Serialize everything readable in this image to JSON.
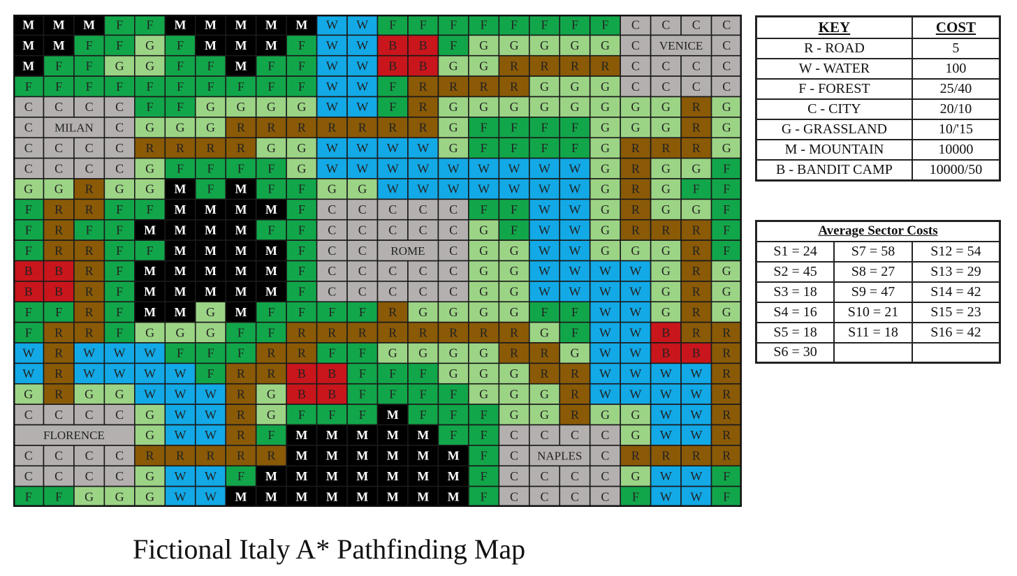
{
  "title": "Fictional Italy A* Pathfinding Map",
  "colors": {
    "M": "#000000",
    "F": "#12a64a",
    "G": "#9cd486",
    "W": "#12a9e6",
    "B": "#c8161c",
    "R": "#8a5a07",
    "C": "#b5b0b0",
    "text_light": "#ffffff",
    "text_dark": "#222222"
  },
  "map": {
    "rows": [
      "MMMFFMMMMMWWFFFFFFFFCCCC",
      "MMFFGFMMMFWWBBFGGGGGCCCC",
      "MFFGGFFMFFWWBBGGRRRRCCCC",
      "FFFFFFFFFFWWFRRRRGGGCCCC",
      "CCCCFFGGGGWWFRGGGGGGGGRG",
      "CCCCGGGRRRRRRRGFFFFGGGRG",
      "CCCCRRRRGGWWWWGFFFFGRRRG",
      "CCCCGFFFFGWWWWWWWWWGRGGF",
      "GGRGGMFMFFGGWWWWWWWGRGFF",
      "FRRFFMMMMFCCCCCFFWWGRGGF",
      "FRFFMMMMFFCCCCCGFWWGRRRF",
      "FRRFFMMMMFCCCCCGGWWGGGRF",
      "BBRFMMMMMFCCCCCGGWWWWGRG",
      "BBRFMMMMMFCCCCCGGWWWWGRG",
      "FFRFMMGMFFFFRGGGGFFWWGRG",
      "FRRFGGGFFRRRRRRRRGFWWBRR",
      "WRWWWFFFRRFFGGGGRRGWWBBR",
      "WRWWWWFRRBBFFFGGGRRWWWWR",
      "GRGGWWWRGBBFFFFGGGRWWWWR",
      "CCCCGWWRGFFFMFFFGGRGGWWR",
      "CCCCGWWRFMMMMMFFCCCCGWWR",
      "CCCCRRRRRMMMMMMFCCCCRRRR",
      "CCCCGWWFMMMMMMMFCCCCGWWF",
      "FFGGGWWMMMMMMMMFCCCCFWWF"
    ],
    "city_labels": [
      {
        "name": "VENICE",
        "row": 1,
        "col": 21,
        "span": 2
      },
      {
        "name": "MILAN",
        "row": 5,
        "col": 1,
        "span": 2
      },
      {
        "name": "ROME",
        "row": 11,
        "col": 12,
        "span": 2
      },
      {
        "name": "FLORENCE",
        "row": 20,
        "col": 0,
        "span": 4
      },
      {
        "name": "NAPLES",
        "row": 21,
        "col": 17,
        "span": 2
      }
    ]
  },
  "key_table": {
    "header_key": "KEY",
    "header_cost": "COST",
    "rows": [
      {
        "label": "R - ROAD",
        "cost": "5"
      },
      {
        "label": "W - WATER",
        "cost": "100"
      },
      {
        "label": "F - FOREST",
        "cost": "25/40"
      },
      {
        "label": "C - CITY",
        "cost": "20/10"
      },
      {
        "label": "G - GRASSLAND",
        "cost": "10/'15"
      },
      {
        "label": "M - MOUNTAIN",
        "cost": "10000"
      },
      {
        "label": "B - BANDIT CAMP",
        "cost": "10000/50"
      }
    ]
  },
  "sector_table": {
    "title": "Average Sector Costs",
    "rows": [
      [
        "S1 = 24",
        "S7 = 58",
        "S12 = 54"
      ],
      [
        "S2 = 45",
        "S8 = 27",
        "S13 = 29"
      ],
      [
        "S3 = 18",
        "S9 = 47",
        "S14 = 42"
      ],
      [
        "S4 = 16",
        "S10 = 21",
        "S15 = 23"
      ],
      [
        "S5 = 18",
        "S11 = 18",
        "S16 = 42"
      ],
      [
        "S6 = 30",
        "",
        ""
      ]
    ]
  }
}
